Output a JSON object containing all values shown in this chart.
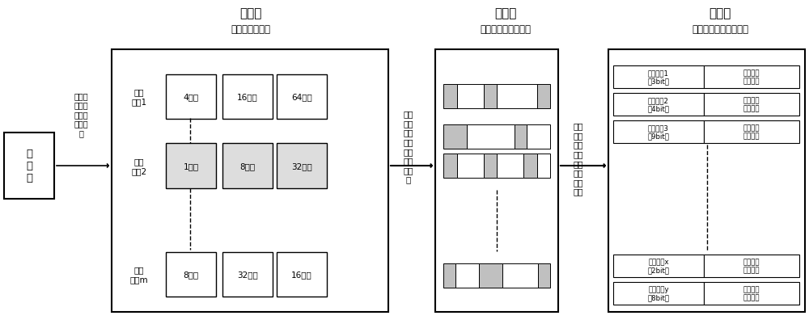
{
  "title_layer1": "组帧层",
  "subtitle_layer1": "（含多张帧表）",
  "title_layer2": "分包层",
  "subtitle_layer2": "（各下位机遥测包）",
  "title_layer3": "信元层",
  "subtitle_layer3": "（遥测量计算与判断）",
  "frame_box_text": "遥\n测\n帧",
  "frame_label": "依据遥\n测帧识\n别选择\n相应帧\n表",
  "middle_label": "依据\n帧表\n将帧\n元分\n配至\n各个\n遥测\n包",
  "right_label": "依据\n包结\n构分\n解遥\n测包\n中的\n刷新\n部分",
  "mode_names": [
    "遥测\n模式1",
    "遥测\n模式2",
    "遥测\n模式m"
  ],
  "frame_labels": [
    [
      "4帧区",
      "16帧区",
      "64帧区"
    ],
    [
      "1帧区",
      "8帧区",
      "32帧区"
    ],
    [
      "8帧区",
      "32帧区",
      "16帧区"
    ]
  ],
  "telemetry_items": [
    [
      "遥测信元1\n（3bit）",
      "公式计算\n遥测判断"
    ],
    [
      "遥测信元2\n（4bit）",
      "公式计算\n遥测判断"
    ],
    [
      "遥测信元3\n（9bit）",
      "公式计算\n遥测判断"
    ],
    [
      "遥测信元x\n（2bit）",
      "公式计算\n遥测判断"
    ],
    [
      "遥测信元y\n（8bit）",
      "公式计算\n遥测判断"
    ]
  ],
  "highlight_mode_idx": 1,
  "bg_color": "#ffffff",
  "dark_gray": "#999999",
  "mid_gray": "#bbbbbb",
  "light_gray": "#dddddd",
  "packet_rows": [
    [
      1,
      2,
      1,
      3,
      1
    ],
    [
      2,
      4,
      1,
      2
    ],
    [
      1,
      2,
      1,
      2,
      1,
      1
    ],
    [
      1,
      2,
      2,
      3,
      1
    ]
  ]
}
